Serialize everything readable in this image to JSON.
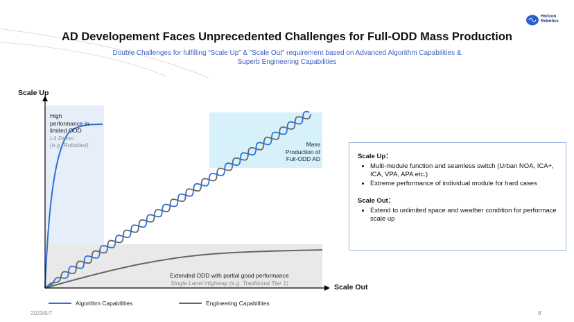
{
  "title": "AD Developement Faces Unprecedented Challenges for Full-ODD Mass Production",
  "subtitle_line1": "Double Challenges for fulfilling “Scale Up” & “Scale Out” requirement based on Advanced Algorithm Capabilities &",
  "subtitle_line2": "Superb Engineering Capabilities",
  "logo": {
    "line1": "Horizon",
    "line2": "Robotics"
  },
  "diagram": {
    "y_axis_label": "Scale Up",
    "x_axis_label": "Scale Out",
    "high_perf": {
      "line1": "High",
      "line2": "performance in",
      "line3": "limited ODD",
      "sub1": "L4 Demo",
      "sub2": "(e.g. Robotaxi)"
    },
    "mass_prod": {
      "line1": "Mass",
      "line2": "Production of",
      "line3": "Full-ODD AD"
    },
    "extended": {
      "line1": "Extended ODD with partial good performance",
      "sub": "Single Lane/ Highway (e.g. Traditional Tier 1)"
    }
  },
  "infobox": {
    "scale_up_title": "Scale Up：",
    "scale_up_items": [
      "Multi-module function and seamless switch (Urban NOA, ICA+, ICA, VPA, APA etc.)",
      "Extreme performance of individual module for hard cases"
    ],
    "scale_out_title": "Scale Out：",
    "scale_out_items": [
      "Extend to unlimited space and weather condition for performace scale up"
    ]
  },
  "legend": {
    "algo": "Algorithm Capabilities",
    "eng": "Engineering Capabilities"
  },
  "footer": {
    "date": "2023/9/7",
    "page": "8"
  },
  "colors": {
    "algo": "#2f6fd6",
    "eng": "#666666",
    "high_zone": "#e6eefa",
    "mass_zone": "#d6f1fa",
    "ext_zone": "#e9e9e9"
  }
}
